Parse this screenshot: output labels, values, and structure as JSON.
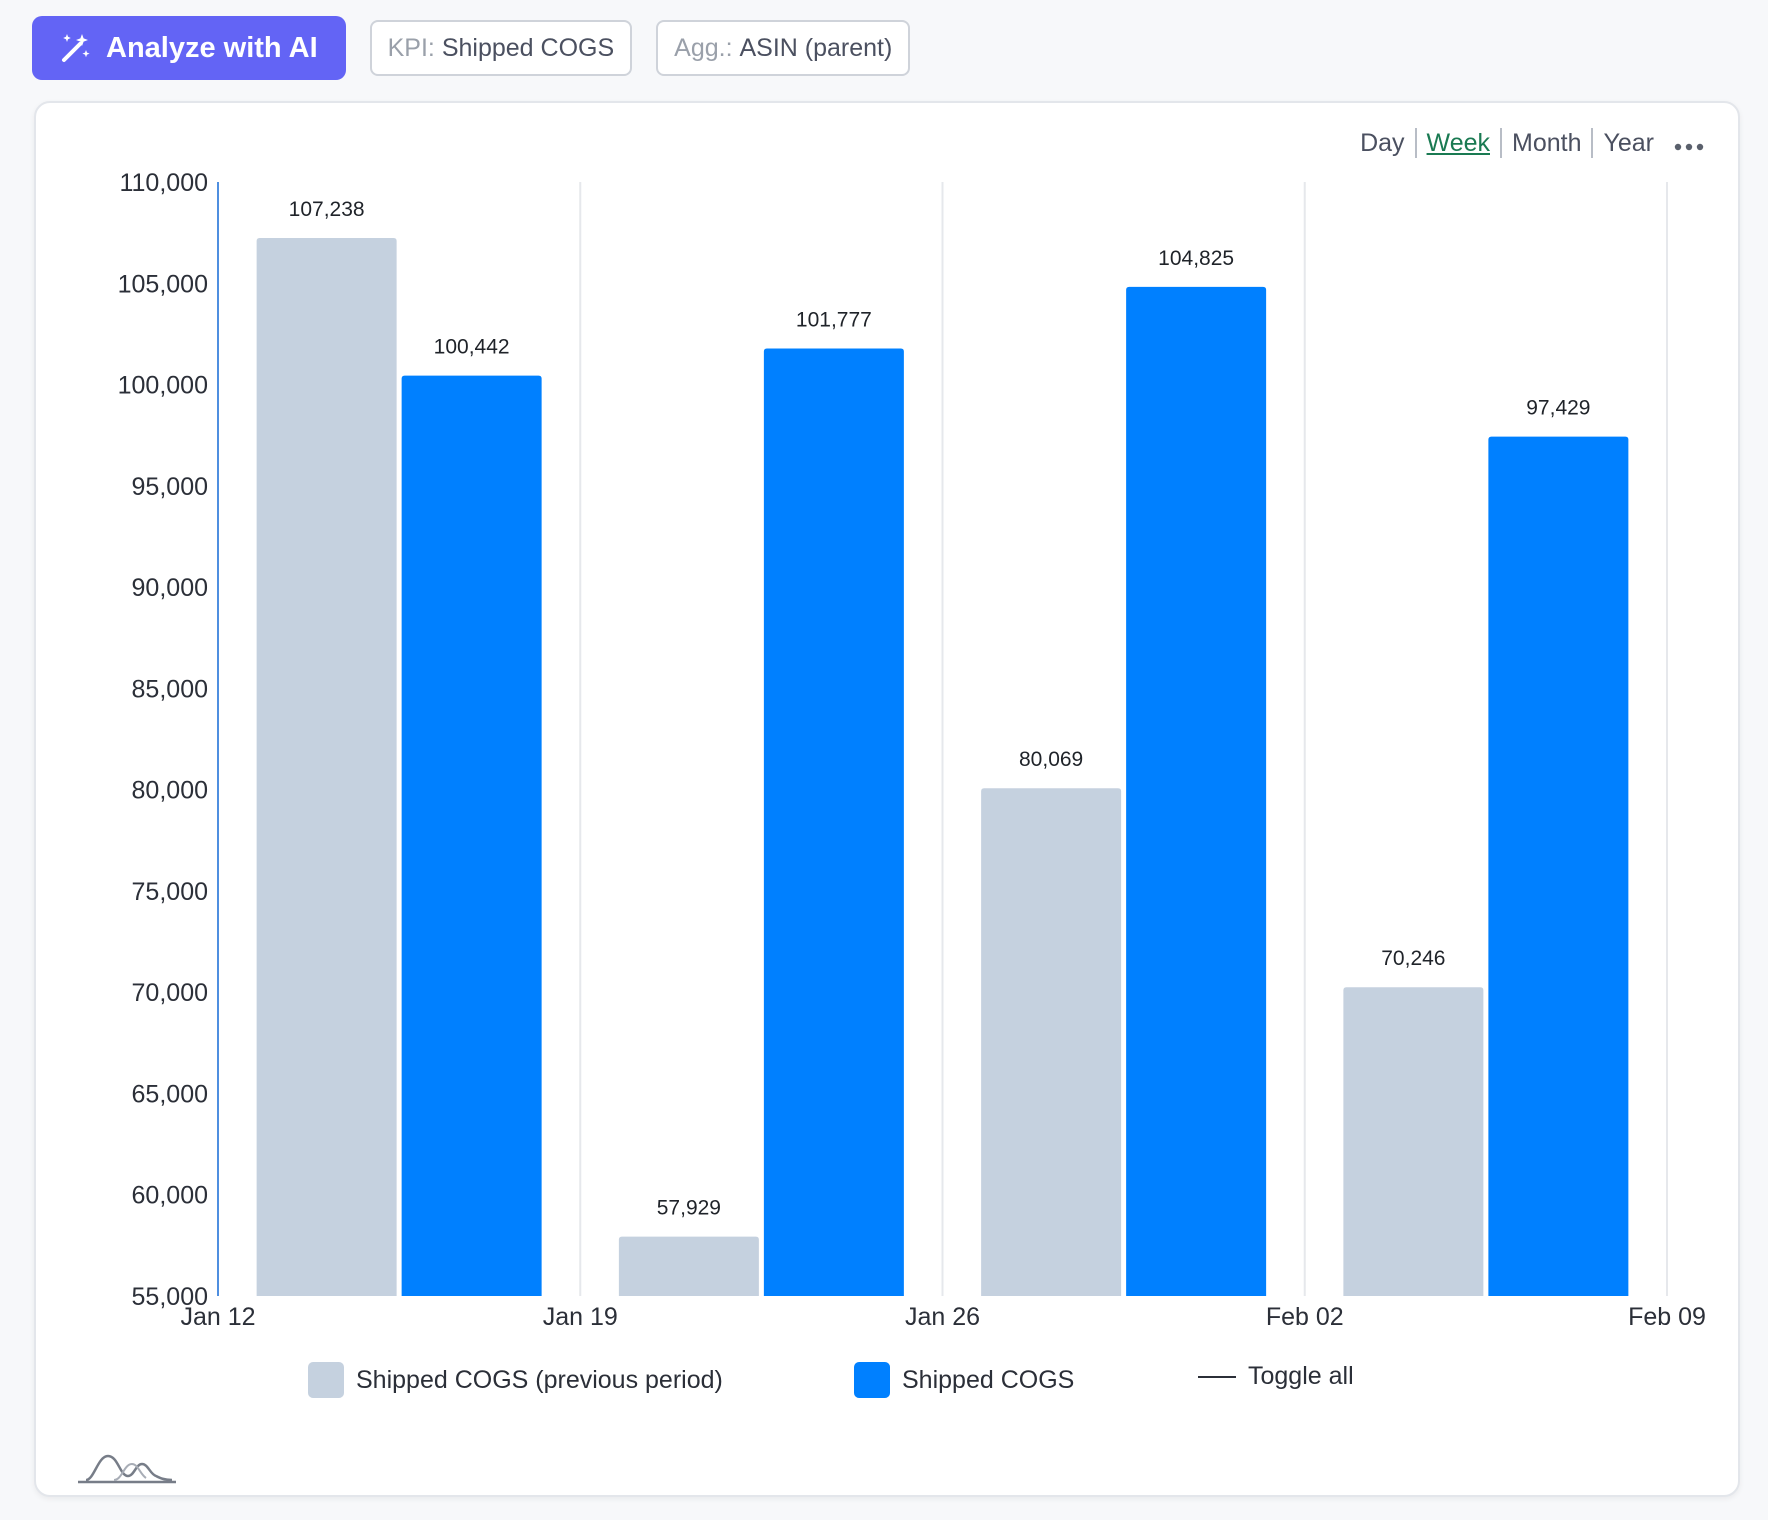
{
  "toolbar": {
    "analyze_label": "Analyze with AI",
    "analyze_icon": "magic-wand-icon",
    "kpi_key": "KPI:",
    "kpi_value": "Shipped COGS",
    "agg_key": "Agg.:",
    "agg_value": "ASIN (parent)"
  },
  "period": {
    "options": [
      "Day",
      "Week",
      "Month",
      "Year"
    ],
    "selected": "Week"
  },
  "colors": {
    "accent": "#6364f5",
    "previous": "#c5d1df",
    "current": "#0080ff",
    "active_period": "#1a7a52"
  },
  "chart_data": {
    "type": "bar",
    "x_ticks": [
      "Jan 12",
      "Jan 19",
      "Jan 26",
      "Feb 02",
      "Feb 09"
    ],
    "series": [
      {
        "name": "Shipped COGS (previous period)",
        "values": [
          107238,
          57929,
          80069,
          70246
        ],
        "color": "#c5d1df"
      },
      {
        "name": "Shipped COGS",
        "values": [
          100442,
          101777,
          104825,
          97429
        ],
        "color": "#0080ff"
      }
    ],
    "data_labels": [
      [
        "107,238",
        "57,929",
        "80,069",
        "70,246"
      ],
      [
        "100,442",
        "101,777",
        "104,825",
        "97,429"
      ]
    ],
    "y_ticks": [
      "55,000",
      "60,000",
      "65,000",
      "70,000",
      "75,000",
      "80,000",
      "85,000",
      "90,000",
      "95,000",
      "100,000",
      "105,000",
      "110,000"
    ],
    "ylim": [
      55000,
      110000
    ],
    "grid": true,
    "legend_position": "bottom"
  },
  "legend": {
    "previous_label": "Shipped COGS (previous period)",
    "current_label": "Shipped COGS",
    "toggle_all_label": "Toggle all"
  }
}
